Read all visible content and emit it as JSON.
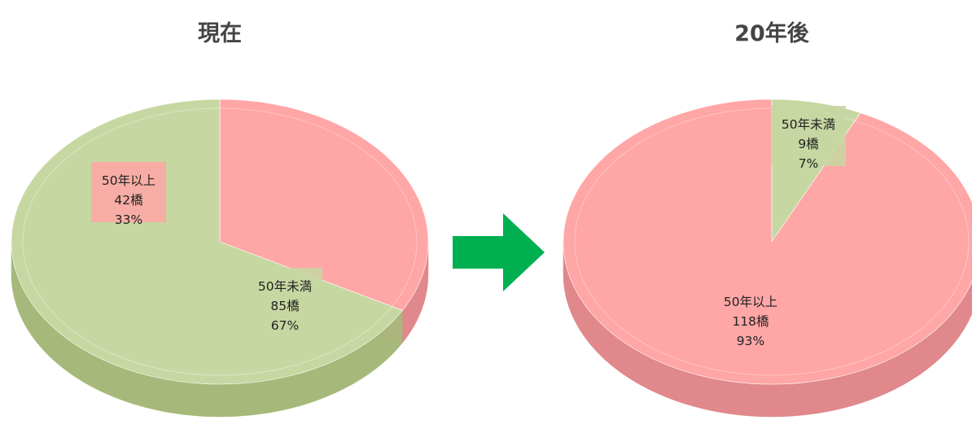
{
  "chart_data": [
    {
      "type": "pie",
      "title": "現在",
      "slices": [
        {
          "label": "50年以上",
          "count": "42橋",
          "percent": "33%",
          "value": 33,
          "color": "#ffa6a6",
          "side_color": "#e0888b"
        },
        {
          "label": "50年未満",
          "count": "85橋",
          "percent": "67%",
          "value": 67,
          "color": "#c7d7a1",
          "side_color": "#a6b97a"
        }
      ]
    },
    {
      "type": "pie",
      "title": "20年後",
      "slices": [
        {
          "label": "50年未満",
          "count": "9橋",
          "percent": "7%",
          "value": 7,
          "color": "#c7d7a1",
          "side_color": "#a6b97a"
        },
        {
          "label": "50年以上",
          "count": "118橋",
          "percent": "93%",
          "value": 93,
          "color": "#ffa6a6",
          "side_color": "#e0888b"
        }
      ]
    }
  ],
  "arrow": {
    "icon": "right-arrow-icon",
    "color": "#00b050"
  }
}
